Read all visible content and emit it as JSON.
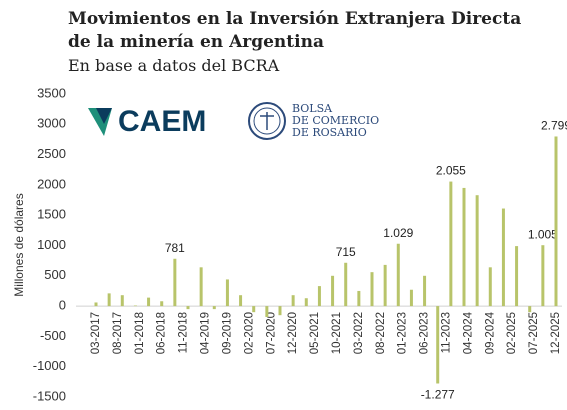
{
  "logos": {
    "caem": "CAEM",
    "bcr": [
      "BOLSA",
      "DE COMERCIO",
      "DE ROSARIO"
    ]
  },
  "chart_data": {
    "type": "bar",
    "title": "Movimientos en la Inversión Extranjera Directa de la minería en Argentina",
    "subtitle": "En base a datos del BCRA",
    "y_label": "Millones de dólares",
    "color": "#b8c46a",
    "ylim": [
      -1500,
      3500
    ],
    "yticks": [
      -1500,
      -1000,
      -500,
      0,
      500,
      1000,
      1500,
      2000,
      2500,
      3000,
      3500
    ],
    "categories": [
      "03-2017",
      null,
      null,
      null,
      null,
      "08-2017",
      null,
      null,
      null,
      null,
      "01-2018",
      null,
      null,
      null,
      null,
      "06-2018",
      null,
      null,
      null,
      null,
      "11-2018",
      null,
      null,
      null,
      null,
      "04-2019",
      null,
      null,
      null,
      null,
      "09-2019",
      null,
      null,
      null,
      null,
      "02-2020",
      null,
      null,
      null,
      null,
      "07-2020",
      null,
      null,
      null,
      null,
      "12-2020",
      null,
      null,
      null,
      null,
      "05-2021",
      null,
      null,
      null,
      null,
      "10-2021",
      null,
      null,
      null,
      null,
      "03-2022",
      null,
      null,
      null,
      null,
      "08-2022",
      null,
      null,
      null,
      null,
      "01-2023",
      null,
      null,
      null,
      null,
      "06-2023",
      null,
      null,
      null,
      null,
      "11-2023",
      null,
      null,
      null,
      null,
      "04-2024",
      null,
      null,
      null,
      null,
      "09-2024",
      null,
      null,
      null,
      null,
      "02-2025",
      null,
      null,
      null,
      null,
      "07-2025",
      null,
      null,
      null,
      null,
      "12-2025"
    ],
    "values": [
      60,
      null,
      null,
      210,
      null,
      null,
      180,
      null,
      null,
      10,
      null,
      null,
      140,
      null,
      null,
      80,
      null,
      null,
      781,
      null,
      null,
      -50,
      null,
      null,
      640,
      null,
      null,
      -50,
      null,
      null,
      440,
      null,
      null,
      180,
      null,
      null,
      -100,
      null,
      null,
      -180,
      null,
      null,
      -150,
      null,
      null,
      180,
      null,
      null,
      130,
      null,
      null,
      330,
      null,
      null,
      500,
      null,
      null,
      715,
      null,
      null,
      250,
      null,
      null,
      560,
      null,
      null,
      680,
      null,
      null,
      1029,
      null,
      null,
      270,
      null,
      null,
      500,
      null,
      null,
      -1277,
      null,
      null,
      2055,
      null,
      null,
      1950,
      null,
      null,
      1830,
      null,
      null,
      640,
      null,
      null,
      1610,
      null,
      null,
      990,
      null,
      null,
      -100,
      null,
      null,
      1005,
      null,
      null,
      2799
    ],
    "value_labels": [
      null,
      null,
      null,
      null,
      null,
      null,
      null,
      null,
      null,
      null,
      null,
      null,
      null,
      null,
      null,
      null,
      null,
      null,
      "781",
      null,
      null,
      null,
      null,
      null,
      null,
      null,
      null,
      null,
      null,
      null,
      null,
      null,
      null,
      null,
      null,
      null,
      null,
      null,
      null,
      null,
      null,
      null,
      null,
      null,
      null,
      null,
      null,
      null,
      null,
      null,
      null,
      null,
      null,
      null,
      null,
      null,
      null,
      "715",
      null,
      null,
      null,
      null,
      null,
      null,
      null,
      null,
      null,
      null,
      null,
      "1.029",
      null,
      null,
      null,
      null,
      null,
      null,
      null,
      null,
      "-1.277",
      null,
      null,
      "2.055",
      null,
      null,
      null,
      null,
      null,
      null,
      null,
      null,
      null,
      null,
      null,
      null,
      null,
      null,
      null,
      null,
      null,
      null,
      null,
      null,
      "1.005",
      null,
      null,
      "2.799"
    ]
  }
}
